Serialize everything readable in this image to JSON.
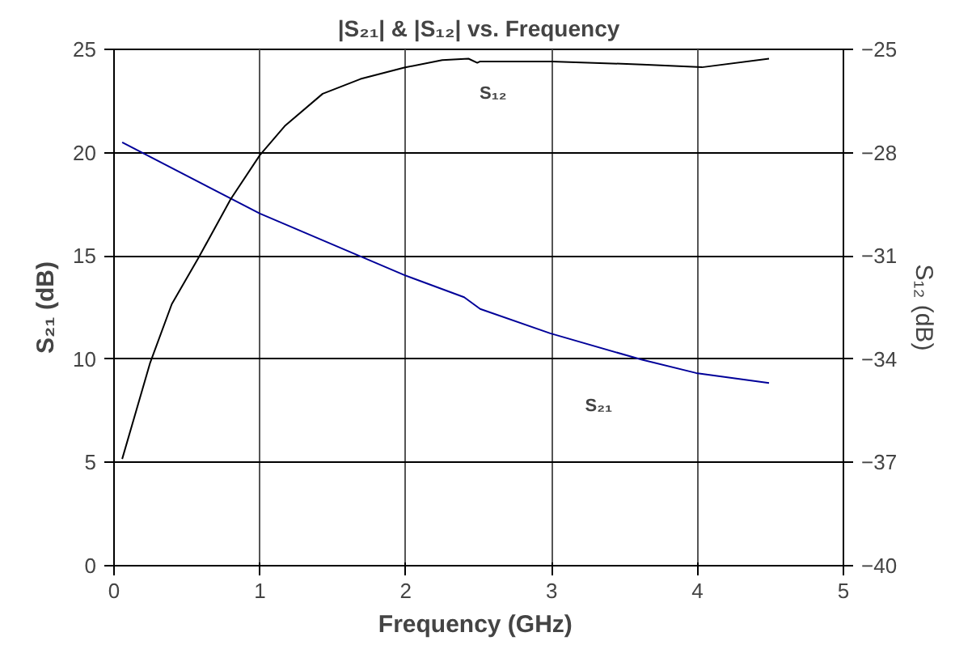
{
  "chart_data": {
    "type": "line",
    "title": "|S₂₁| & |S₁₂| vs. Frequency",
    "xlabel": "Frequency  (GHz)",
    "ylabel": "S₂₁ (dB)",
    "y2label": "S₁₂ (dB)",
    "xlim": [
      0,
      5
    ],
    "xticks": [
      0,
      1,
      2,
      3,
      4,
      5
    ],
    "ylim": [
      0,
      25
    ],
    "yticks": [
      0,
      5,
      10,
      15,
      20,
      25
    ],
    "y2lim": [
      -40,
      -25
    ],
    "y2ticks": [
      -40,
      -37,
      -34,
      -31,
      -28,
      -25
    ],
    "grid": true,
    "line_style": "solid",
    "marker": "none",
    "series": [
      {
        "name": "S₂₁",
        "color": "#000099",
        "x": [
          0.056,
          1.0,
          1.99,
          2.4,
          2.51,
          2.99,
          3.62,
          3.99,
          4.49
        ],
        "values": [
          20.5,
          17.05,
          14.07,
          13.0,
          12.43,
          11.25,
          9.97,
          9.33,
          8.85
        ]
      },
      {
        "name": "S₁₂",
        "color": "#000000",
        "axis": "y2",
        "x": [
          0.056,
          0.248,
          0.396,
          0.58,
          0.8,
          1.0,
          1.17,
          1.43,
          1.69,
          1.99,
          2.25,
          2.43,
          2.49,
          2.51,
          3.0,
          3.62,
          4.03,
          4.49
        ],
        "values": [
          -36.9,
          -34.1,
          -32.4,
          -31.05,
          -29.35,
          -28.07,
          -27.23,
          -26.29,
          -25.86,
          -25.53,
          -25.31,
          -25.27,
          -25.39,
          -25.35,
          -25.35,
          -25.44,
          -25.52,
          -25.27
        ]
      }
    ]
  }
}
